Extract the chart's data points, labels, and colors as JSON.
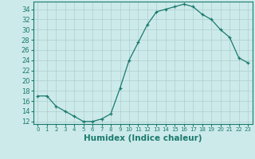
{
  "x": [
    0,
    1,
    2,
    3,
    4,
    5,
    6,
    7,
    8,
    9,
    10,
    11,
    12,
    13,
    14,
    15,
    16,
    17,
    18,
    19,
    20,
    21,
    22,
    23
  ],
  "y": [
    17,
    17,
    15,
    14,
    13,
    12,
    12,
    12.5,
    13.5,
    18.5,
    24,
    27.5,
    31,
    33.5,
    34,
    34.5,
    35,
    34.5,
    33,
    32,
    30,
    28.5,
    24.5,
    23.5
  ],
  "xlabel": "Humidex (Indice chaleur)",
  "ylabel": "",
  "ylim": [
    11.5,
    35.5
  ],
  "xlim": [
    -0.5,
    23.5
  ],
  "yticks": [
    12,
    14,
    16,
    18,
    20,
    22,
    24,
    26,
    28,
    30,
    32,
    34
  ],
  "line_color": "#1a7a6e",
  "bg_color": "#cdeaea",
  "grid_color": "#aecece",
  "label_fontsize": 7.5
}
